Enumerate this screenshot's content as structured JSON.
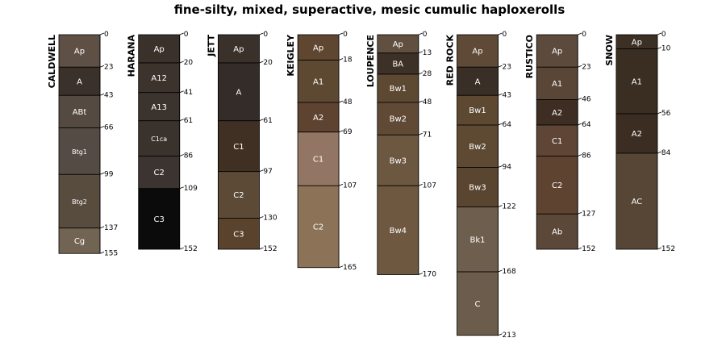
{
  "chart_data": {
    "type": "soil-profile-sketch",
    "title": "fine-silty, mixed, superactive, mesic cumulic haploxerolls",
    "depth_units": "cm",
    "profiles": [
      {
        "name": "CALDWELL",
        "horizons": [
          {
            "name": "Ap",
            "top": 0,
            "bottom": 23,
            "color": "#5e5045"
          },
          {
            "name": "A",
            "top": 23,
            "bottom": 43,
            "color": "#3a312a"
          },
          {
            "name": "ABt",
            "top": 43,
            "bottom": 66,
            "color": "#544a41"
          },
          {
            "name": "Btg1",
            "top": 66,
            "bottom": 99,
            "color": "#554b45",
            "small": true
          },
          {
            "name": "Btg2",
            "top": 99,
            "bottom": 137,
            "color": "#574c3e",
            "small": true
          },
          {
            "name": "Cg",
            "top": 137,
            "bottom": 155,
            "color": "#726453"
          }
        ],
        "depth_labels": [
          "0",
          "23",
          "43",
          "66",
          "99",
          "137",
          "155"
        ]
      },
      {
        "name": "HARANA",
        "horizons": [
          {
            "name": "Ap",
            "top": 0,
            "bottom": 20,
            "color": "#3a312b"
          },
          {
            "name": "A12",
            "top": 20,
            "bottom": 41,
            "color": "#3c332d"
          },
          {
            "name": "A13",
            "top": 41,
            "bottom": 61,
            "color": "#3b332d"
          },
          {
            "name": "C1ca",
            "top": 61,
            "bottom": 86,
            "color": "#3a322c",
            "small": true
          },
          {
            "name": "C2",
            "top": 86,
            "bottom": 109,
            "color": "#3c3430"
          },
          {
            "name": "C3",
            "top": 109,
            "bottom": 152,
            "color": "#0b0b0b"
          }
        ],
        "depth_labels": [
          "0",
          "20",
          "41",
          "61",
          "86",
          "109",
          "152"
        ]
      },
      {
        "name": "JETT",
        "horizons": [
          {
            "name": "Ap",
            "top": 0,
            "bottom": 20,
            "color": "#3a312b"
          },
          {
            "name": "A",
            "top": 20,
            "bottom": 61,
            "color": "#342c28"
          },
          {
            "name": "C1",
            "top": 61,
            "bottom": 97,
            "color": "#3f3023"
          },
          {
            "name": "C2",
            "top": 97,
            "bottom": 130,
            "color": "#5c4a37"
          },
          {
            "name": "C3",
            "top": 130,
            "bottom": 152,
            "color": "#5a432d"
          }
        ],
        "depth_labels": [
          "0",
          "20",
          "61",
          "97",
          "130",
          "152"
        ]
      },
      {
        "name": "KEIGLEY",
        "horizons": [
          {
            "name": "Ap",
            "top": 0,
            "bottom": 18,
            "color": "#5e4630"
          },
          {
            "name": "A1",
            "top": 18,
            "bottom": 48,
            "color": "#5d4832"
          },
          {
            "name": "A2",
            "top": 48,
            "bottom": 69,
            "color": "#5e4330"
          },
          {
            "name": "C1",
            "top": 69,
            "bottom": 107,
            "color": "#927663"
          },
          {
            "name": "C2",
            "top": 107,
            "bottom": 165,
            "color": "#8c7358"
          }
        ],
        "depth_labels": [
          "0",
          "18",
          "48",
          "69",
          "107",
          "165"
        ]
      },
      {
        "name": "LOUPENCE",
        "horizons": [
          {
            "name": "Ap",
            "top": 0,
            "bottom": 13,
            "color": "#615040"
          },
          {
            "name": "BA",
            "top": 13,
            "bottom": 28,
            "color": "#3d3026"
          },
          {
            "name": "Bw1",
            "top": 28,
            "bottom": 48,
            "color": "#5d4831"
          },
          {
            "name": "Bw2",
            "top": 48,
            "bottom": 71,
            "color": "#604a36"
          },
          {
            "name": "Bw3",
            "top": 71,
            "bottom": 107,
            "color": "#6c5741"
          },
          {
            "name": "Bw4",
            "top": 107,
            "bottom": 170,
            "color": "#6e5840"
          }
        ],
        "depth_labels": [
          "0",
          "13",
          "28",
          "48",
          "71",
          "107",
          "170"
        ]
      },
      {
        "name": "RED ROCK",
        "horizons": [
          {
            "name": "Ap",
            "top": 0,
            "bottom": 23,
            "color": "#5e4a37"
          },
          {
            "name": "A",
            "top": 23,
            "bottom": 43,
            "color": "#3a2f27"
          },
          {
            "name": "Bw1",
            "top": 43,
            "bottom": 64,
            "color": "#5d4932"
          },
          {
            "name": "Bw2",
            "top": 64,
            "bottom": 94,
            "color": "#5e4a33"
          },
          {
            "name": "Bw3",
            "top": 94,
            "bottom": 122,
            "color": "#5a4530"
          },
          {
            "name": "Bk1",
            "top": 122,
            "bottom": 168,
            "color": "#6e5e4d"
          },
          {
            "name": "C",
            "top": 168,
            "bottom": 213,
            "color": "#6c5c4b"
          }
        ],
        "depth_labels": [
          "0",
          "23",
          "43",
          "64",
          "94",
          "122",
          "168",
          "213"
        ]
      },
      {
        "name": "RUSTICO",
        "horizons": [
          {
            "name": "Ap",
            "top": 0,
            "bottom": 23,
            "color": "#5c4a3c"
          },
          {
            "name": "A1",
            "top": 23,
            "bottom": 46,
            "color": "#5a4636"
          },
          {
            "name": "A2",
            "top": 46,
            "bottom": 64,
            "color": "#3d2d22"
          },
          {
            "name": "C1",
            "top": 64,
            "bottom": 86,
            "color": "#5e4535"
          },
          {
            "name": "C2",
            "top": 86,
            "bottom": 127,
            "color": "#5f4331"
          },
          {
            "name": "Ab",
            "top": 127,
            "bottom": 152,
            "color": "#5b4838"
          }
        ],
        "depth_labels": [
          "0",
          "23",
          "46",
          "64",
          "86",
          "127",
          "152"
        ]
      },
      {
        "name": "SNOW",
        "horizons": [
          {
            "name": "Ap",
            "top": 0,
            "bottom": 10,
            "color": "#3c3025"
          },
          {
            "name": "A1",
            "top": 10,
            "bottom": 56,
            "color": "#3a2e22"
          },
          {
            "name": "A2",
            "top": 56,
            "bottom": 84,
            "color": "#3b2d22"
          },
          {
            "name": "AC",
            "top": 84,
            "bottom": 152,
            "color": "#574636"
          }
        ],
        "depth_labels": [
          "0",
          "10",
          "56",
          "84",
          "152"
        ]
      }
    ]
  }
}
